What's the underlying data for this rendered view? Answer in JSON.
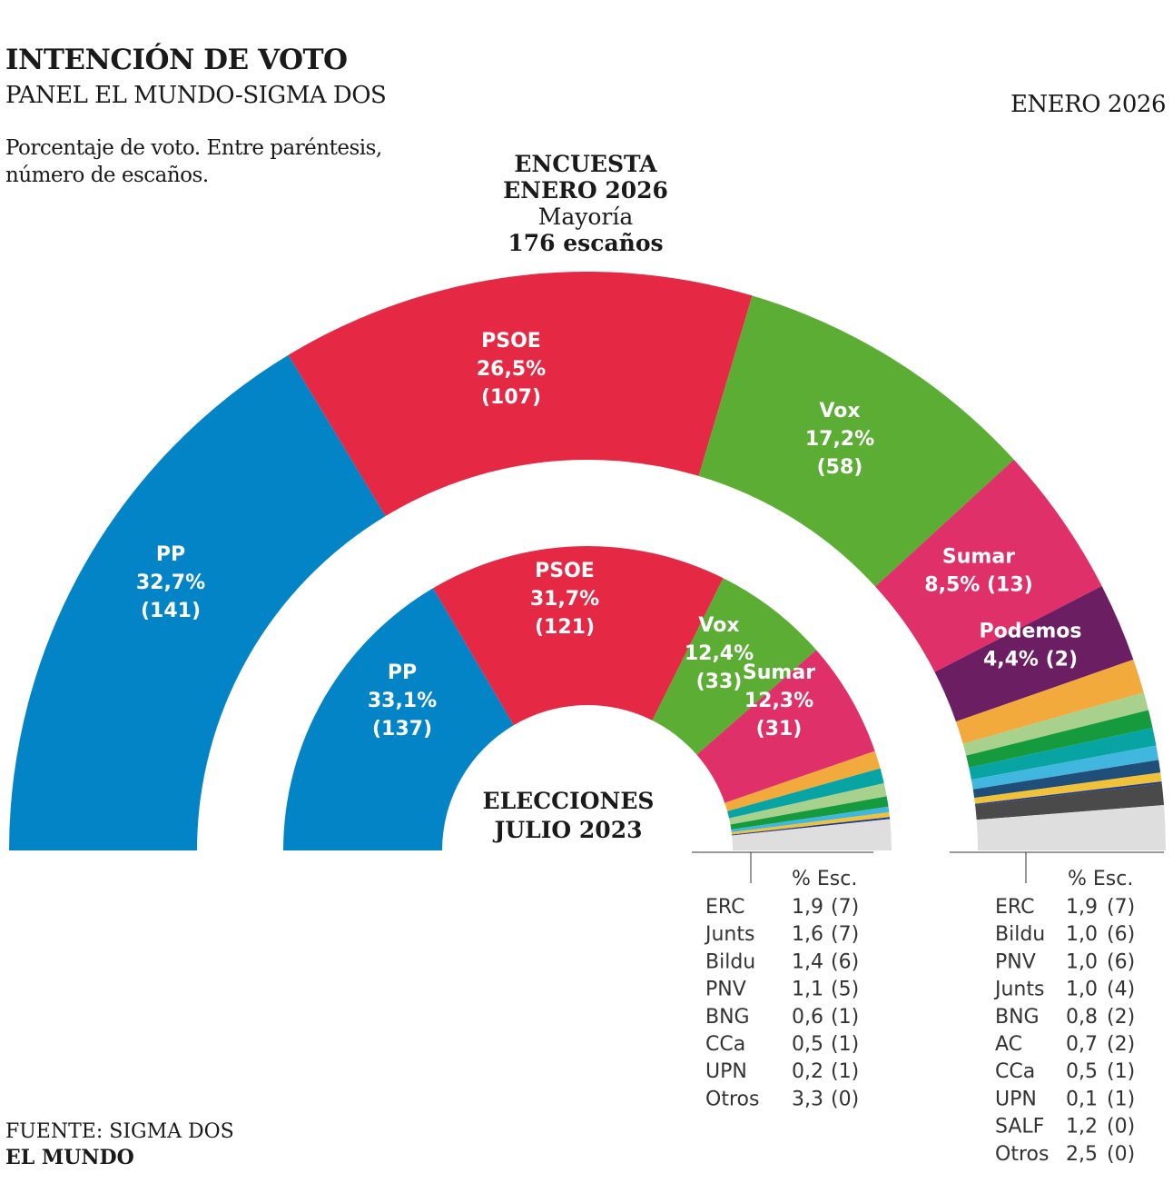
{
  "header": {
    "title": "INTENCIÓN DE VOTO",
    "subtitle": "PANEL EL MUNDO-SIGMA DOS",
    "date": "ENERO 2026",
    "note_line1": "Porcentaje de voto. Entre paréntesis,",
    "note_line2": "número de escaños."
  },
  "survey_label": {
    "line1": "ENCUESTA",
    "line2": "ENERO 2026",
    "line3": "Mayoría",
    "line4": "176 escaños"
  },
  "footer": {
    "source": "FUENTE: SIGMA DOS",
    "brand": "EL MUNDO"
  },
  "chart_data": [
    {
      "type": "pie",
      "name": "Encuesta enero 2026",
      "total_seats": 350,
      "majority": 176,
      "parties": [
        {
          "name": "PP",
          "pct": "32,7%",
          "pct_value": 32.7,
          "seats": 141,
          "color": "#0284c7",
          "label_lines": [
            "PP",
            "32,7%",
            "(141)"
          ]
        },
        {
          "name": "PSOE",
          "pct": "26,5%",
          "pct_value": 26.5,
          "seats": 107,
          "color": "#e52843",
          "label_lines": [
            "PSOE",
            "26,5%",
            "(107)"
          ]
        },
        {
          "name": "Vox",
          "pct": "17,2%",
          "pct_value": 17.2,
          "seats": 58,
          "color": "#5bad34",
          "label_lines": [
            "Vox",
            "17,2%",
            "(58)"
          ]
        },
        {
          "name": "Sumar",
          "pct": "8,5%",
          "pct_value": 8.5,
          "seats": 13,
          "color": "#e0306a",
          "label_lines": [
            "Sumar",
            "8,5% (13)"
          ]
        },
        {
          "name": "Podemos",
          "pct": "4,4%",
          "pct_value": 4.4,
          "seats": 2,
          "color": "#6b1e62",
          "label_lines": [
            "Podemos",
            "4,4% (2)"
          ]
        },
        {
          "name": "ERC",
          "pct_value": 1.9,
          "seats": 7,
          "color": "#f2aa3c"
        },
        {
          "name": "Bildu",
          "pct_value": 1.0,
          "seats": 6,
          "color": "#a9d18e"
        },
        {
          "name": "PNV",
          "pct_value": 1.0,
          "seats": 6,
          "color": "#159a3e"
        },
        {
          "name": "Junts",
          "pct_value": 1.0,
          "seats": 4,
          "color": "#08a3a3"
        },
        {
          "name": "BNG",
          "pct_value": 0.8,
          "seats": 2,
          "color": "#41b7e0"
        },
        {
          "name": "AC",
          "pct_value": 0.7,
          "seats": 2,
          "color": "#1f4e78"
        },
        {
          "name": "CCa",
          "pct_value": 0.5,
          "seats": 1,
          "color": "#efc23a"
        },
        {
          "name": "UPN",
          "pct_value": 0.1,
          "seats": 1,
          "color": "#1d3a8a"
        },
        {
          "name": "SALF",
          "pct_value": 1.2,
          "seats": 0,
          "color": "#4a4a4a"
        },
        {
          "name": "Otros",
          "pct_value": 2.5,
          "seats": 0,
          "color": "#dedede"
        }
      ],
      "table": {
        "header": "% Esc.",
        "rows": [
          {
            "party": "ERC",
            "pct": "1,9",
            "seats": "(7)"
          },
          {
            "party": "Bildu",
            "pct": "1,0",
            "seats": "(6)"
          },
          {
            "party": "PNV",
            "pct": "1,0",
            "seats": "(6)"
          },
          {
            "party": "Junts",
            "pct": "1,0",
            "seats": "(4)"
          },
          {
            "party": "BNG",
            "pct": "0,8",
            "seats": "(2)"
          },
          {
            "party": "AC",
            "pct": "0,7",
            "seats": "(2)"
          },
          {
            "party": "CCa",
            "pct": "0,5",
            "seats": "(1)"
          },
          {
            "party": "UPN",
            "pct": "0,1",
            "seats": "(1)"
          },
          {
            "party": "SALF",
            "pct": "1,2",
            "seats": "(0)"
          },
          {
            "party": "Otros",
            "pct": "2,5",
            "seats": "(0)"
          }
        ]
      }
    },
    {
      "type": "pie",
      "name": "Elecciones julio 2023",
      "center_label": [
        "ELECCIONES",
        "JULIO 2023"
      ],
      "total_seats": 350,
      "parties": [
        {
          "name": "PP",
          "pct": "33,1%",
          "pct_value": 33.1,
          "seats": 137,
          "color": "#0284c7",
          "label_lines": [
            "PP",
            "33,1%",
            "(137)"
          ]
        },
        {
          "name": "PSOE",
          "pct": "31,7%",
          "pct_value": 31.7,
          "seats": 121,
          "color": "#e52843",
          "label_lines": [
            "PSOE",
            "31,7%",
            "(121)"
          ]
        },
        {
          "name": "Vox",
          "pct": "12,4%",
          "pct_value": 12.4,
          "seats": 33,
          "color": "#5bad34",
          "label_lines": [
            "Vox",
            "12,4%",
            "(33)"
          ]
        },
        {
          "name": "Sumar",
          "pct": "12,3%",
          "pct_value": 12.3,
          "seats": 31,
          "color": "#e0306a",
          "label_lines": [
            "Sumar",
            "12,3%",
            "(31)"
          ]
        },
        {
          "name": "ERC",
          "pct_value": 1.9,
          "seats": 7,
          "color": "#f2aa3c"
        },
        {
          "name": "Junts",
          "pct_value": 1.6,
          "seats": 7,
          "color": "#08a3a3"
        },
        {
          "name": "Bildu",
          "pct_value": 1.4,
          "seats": 6,
          "color": "#a9d18e"
        },
        {
          "name": "PNV",
          "pct_value": 1.1,
          "seats": 5,
          "color": "#159a3e"
        },
        {
          "name": "BNG",
          "pct_value": 0.6,
          "seats": 1,
          "color": "#41b7e0"
        },
        {
          "name": "CCa",
          "pct_value": 0.5,
          "seats": 1,
          "color": "#efc23a"
        },
        {
          "name": "UPN",
          "pct_value": 0.2,
          "seats": 1,
          "color": "#1d3a8a"
        },
        {
          "name": "Otros",
          "pct_value": 3.3,
          "seats": 0,
          "color": "#dedede"
        }
      ],
      "table": {
        "header": "% Esc.",
        "rows": [
          {
            "party": "ERC",
            "pct": "1,9",
            "seats": "(7)"
          },
          {
            "party": "Junts",
            "pct": "1,6",
            "seats": "(7)"
          },
          {
            "party": "Bildu",
            "pct": "1,4",
            "seats": "(6)"
          },
          {
            "party": "PNV",
            "pct": "1,1",
            "seats": "(5)"
          },
          {
            "party": "BNG",
            "pct": "0,6",
            "seats": "(1)"
          },
          {
            "party": "CCa",
            "pct": "0,5",
            "seats": "(1)"
          },
          {
            "party": "UPN",
            "pct": "0,2",
            "seats": "(1)"
          },
          {
            "party": "Otros",
            "pct": "3,3",
            "seats": "(0)"
          }
        ]
      }
    }
  ]
}
